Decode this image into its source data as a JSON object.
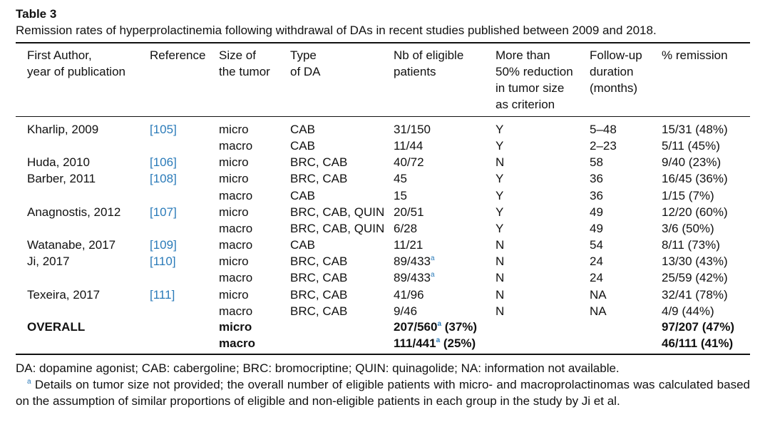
{
  "title": "Table 3",
  "caption": "Remission rates of hyperprolactinemia following withdrawal of DAs in recent studies published between 2009 and 2018.",
  "table": {
    "header": [
      [
        "First Author,",
        "year of publication"
      ],
      [
        "Reference"
      ],
      [
        "Size of",
        "the tumor"
      ],
      [
        "Type",
        "of DA"
      ],
      [
        "Nb of eligible",
        "patients"
      ],
      [
        "More than",
        "50% reduction",
        "in tumor size",
        "as criterion"
      ],
      [
        "Follow-up",
        "duration",
        "(months)"
      ],
      [
        "% remission"
      ]
    ],
    "rows": [
      [
        "Kharlip, 2009",
        "[105]",
        "micro",
        "CAB",
        "31/150",
        "Y",
        "5–48",
        "15/31 (48%)"
      ],
      [
        null,
        null,
        "macro",
        "CAB",
        "11/44",
        "Y",
        "2–23",
        "5/11 (45%)"
      ],
      [
        "Huda, 2010",
        "[106]",
        "micro",
        "BRC, CAB",
        "40/72",
        "N",
        "58",
        "9/40 (23%)"
      ],
      [
        "Barber, 2011",
        "[108]",
        "micro",
        "BRC, CAB",
        "45",
        "Y",
        "36",
        "16/45 (36%)"
      ],
      [
        null,
        null,
        "macro",
        "CAB",
        "15",
        "Y",
        "36",
        "1/15 (7%)"
      ],
      [
        "Anagnostis, 2012",
        "[107]",
        "micro",
        "BRC, CAB, QUIN",
        "20/51",
        "Y",
        "49",
        "12/20 (60%)"
      ],
      [
        null,
        null,
        "macro",
        "BRC, CAB, QUIN",
        "6/28",
        "Y",
        "49",
        "3/6 (50%)"
      ],
      [
        "Watanabe, 2017",
        "[109]",
        "macro",
        "CAB",
        "11/21",
        "N",
        "54",
        "8/11 (73%)"
      ],
      [
        "Ji, 2017",
        "[110]",
        "micro",
        "BRC, CAB",
        {
          "text": "89/433",
          "note": "a"
        },
        "N",
        "24",
        "13/30 (43%)"
      ],
      [
        null,
        null,
        "macro",
        "BRC, CAB",
        {
          "text": "89/433",
          "note": "a"
        },
        "N",
        "24",
        "25/59 (42%)"
      ],
      [
        "Texeira, 2017",
        "[111]",
        "micro",
        "BRC, CAB",
        "41/96",
        "N",
        "NA",
        "32/41 (78%)"
      ],
      [
        null,
        null,
        "macro",
        "BRC, CAB",
        "9/46",
        "N",
        "NA",
        "4/9 (44%)"
      ]
    ],
    "summary_rows": [
      [
        "OVERALL",
        null,
        "micro",
        null,
        {
          "text": "207/560",
          "note": "a",
          "after": " (37%)"
        },
        null,
        null,
        "97/207 (47%)"
      ],
      [
        null,
        null,
        "macro",
        null,
        {
          "text": "111/441",
          "note": "a",
          "after": " (25%)"
        },
        null,
        null,
        "46/111 (41%)"
      ]
    ]
  },
  "footnotes": {
    "abbreviations": "DA: dopamine agonist; CAB: cabergoline; BRC: bromocriptine; QUIN: quinagolide; NA: information not available.",
    "note_marker": "a",
    "note": "Details on tumor size not provided; the overall number of eligible patients with micro- and macroprolactinomas was calculated based on the assumption of similar proportions of eligible and non-eligible patients in each group in the study by Ji et al."
  }
}
